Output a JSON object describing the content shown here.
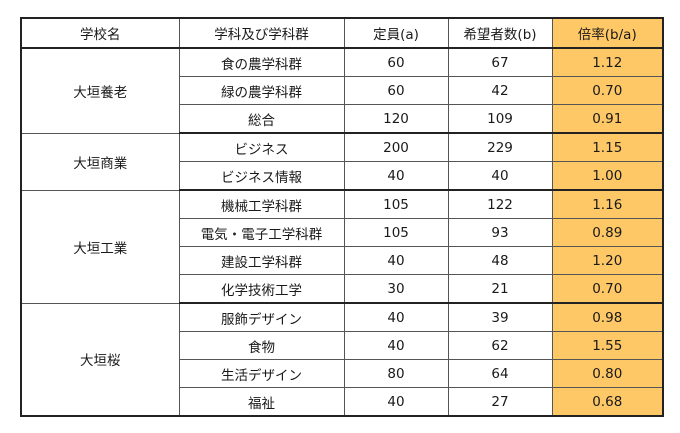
{
  "headers": [
    "学校名",
    "学科及び学科群",
    "定員(a)",
    "希望者数(b)",
    "倍率(b/a)"
  ],
  "accent_color": "#ffc866",
  "groups": [
    {
      "school": "大垣養老",
      "rows": [
        {
          "dept": "食の農学科群",
          "capacity": "60",
          "applicants": "67",
          "ratio": "1.12"
        },
        {
          "dept": "緑の農学科群",
          "capacity": "60",
          "applicants": "42",
          "ratio": "0.70"
        },
        {
          "dept": "総合",
          "capacity": "120",
          "applicants": "109",
          "ratio": "0.91"
        }
      ]
    },
    {
      "school": "大垣商業",
      "rows": [
        {
          "dept": "ビジネス",
          "capacity": "200",
          "applicants": "229",
          "ratio": "1.15"
        },
        {
          "dept": "ビジネス情報",
          "capacity": "40",
          "applicants": "40",
          "ratio": "1.00"
        }
      ]
    },
    {
      "school": "大垣工業",
      "rows": [
        {
          "dept": "機械工学科群",
          "capacity": "105",
          "applicants": "122",
          "ratio": "1.16"
        },
        {
          "dept": "電気・電子工学科群",
          "capacity": "105",
          "applicants": "93",
          "ratio": "0.89"
        },
        {
          "dept": "建設工学科群",
          "capacity": "40",
          "applicants": "48",
          "ratio": "1.20"
        },
        {
          "dept": "化学技術工学",
          "capacity": "30",
          "applicants": "21",
          "ratio": "0.70"
        }
      ]
    },
    {
      "school": "大垣桜",
      "rows": [
        {
          "dept": "服飾デザイン",
          "capacity": "40",
          "applicants": "39",
          "ratio": "0.98"
        },
        {
          "dept": "食物",
          "capacity": "40",
          "applicants": "62",
          "ratio": "1.55"
        },
        {
          "dept": "生活デザイン",
          "capacity": "80",
          "applicants": "64",
          "ratio": "0.80"
        },
        {
          "dept": "福祉",
          "capacity": "40",
          "applicants": "27",
          "ratio": "0.68"
        }
      ]
    }
  ]
}
